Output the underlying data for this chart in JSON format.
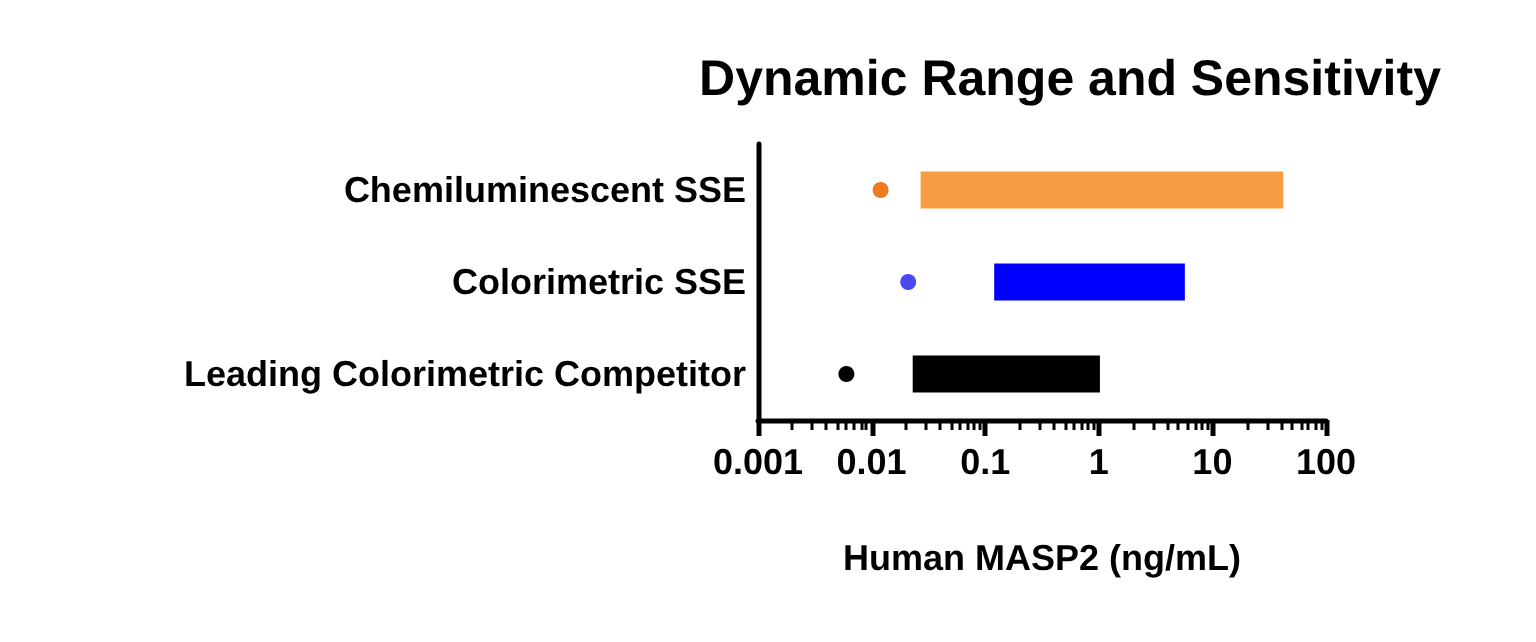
{
  "chart_data": {
    "type": "bar",
    "orientation": "horizontal",
    "title": "Dynamic Range and Sensitivity",
    "xlabel": "Human MASP2 (ng/mL)",
    "categories": [
      "Chemiluminescent SSE",
      "Colorimetric SSE",
      "Leading Colorimetric Competitor"
    ],
    "series": [
      {
        "base": [
          0.027,
          0.12,
          0.023
        ],
        "values": [
          42,
          5.6,
          1.0
        ],
        "colors": [
          "#f79d45",
          "#0000ff",
          "#000000"
        ]
      },
      {
        "type": "scatter",
        "values": [
          0.012,
          0.021,
          0.006
        ],
        "colors": [
          "#f07a20",
          "#4a4af0",
          "#000000"
        ]
      }
    ],
    "log": "x",
    "xlim": [
      0.001,
      100
    ],
    "xticks": [
      0.001,
      0.01,
      0.1,
      1,
      10,
      100
    ],
    "marker": "circle",
    "grid": false
  }
}
